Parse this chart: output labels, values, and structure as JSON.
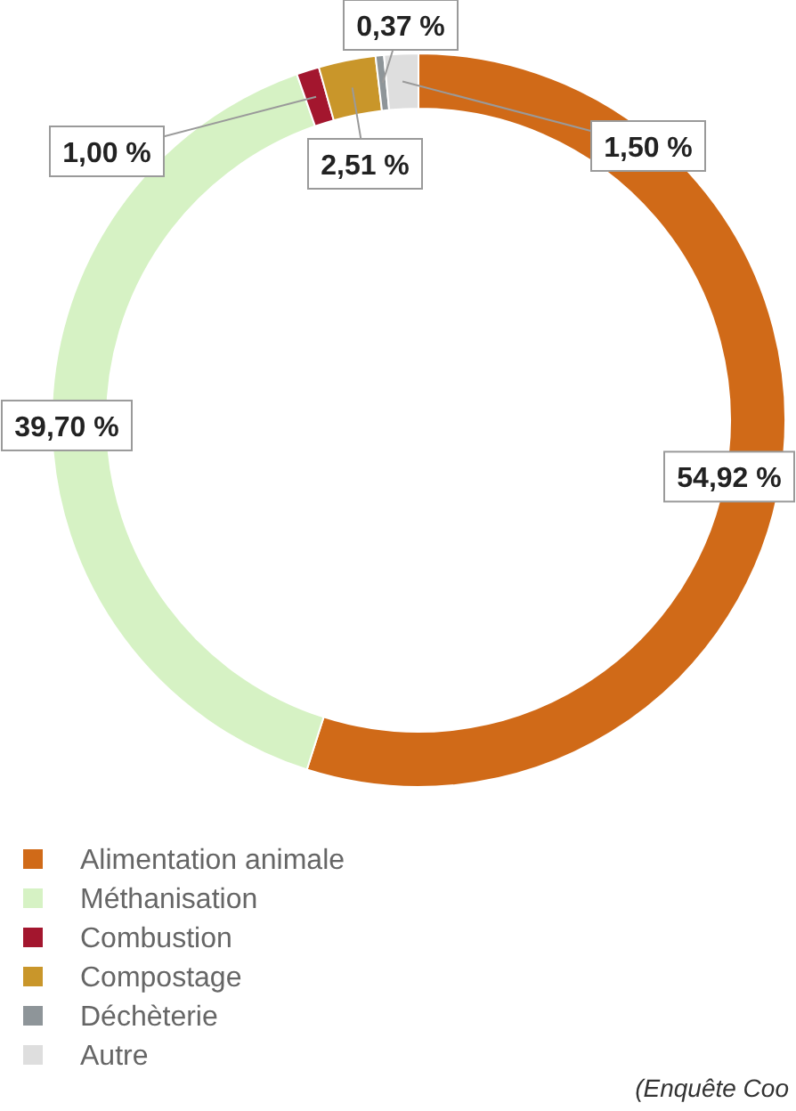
{
  "chart_data": {
    "type": "donut",
    "categories": [
      "Alimentation animale",
      "Méthanisation",
      "Combustion",
      "Compostage",
      "Déchèterie",
      "Autre"
    ],
    "values": [
      54.92,
      39.7,
      1.0,
      2.51,
      0.37,
      1.5
    ],
    "colors": [
      "#d06a18",
      "#d6f2c4",
      "#a3162e",
      "#c9962a",
      "#8e9599",
      "#dedede"
    ],
    "value_labels": [
      "54,92 %",
      "39,70 %",
      "1,00 %",
      "2,51 %",
      "0,37 %",
      "1,50 %"
    ],
    "legend": "bottom left",
    "annotations": [
      "(Enquête Coo"
    ]
  }
}
